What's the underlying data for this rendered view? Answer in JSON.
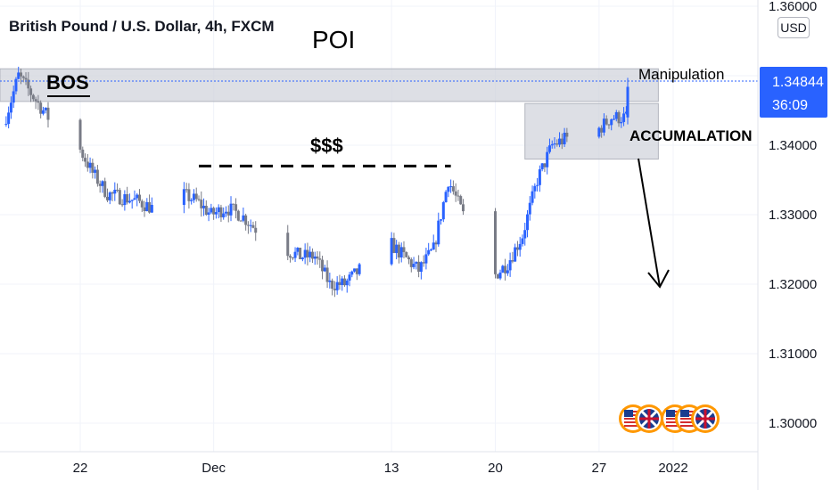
{
  "header": {
    "title": "British Pound / U.S. Dollar, 4h, FXCM",
    "currency": "USD"
  },
  "last_price": {
    "value": "1.34844",
    "countdown": "36:09"
  },
  "colors": {
    "up": "#2962ff",
    "down": "#787b86",
    "zone": "#d1d4dc",
    "price_label": "#2962ff"
  },
  "icons": [
    "us-flag-icon",
    "uk-flag-icon",
    "us-flag-icon",
    "us-flag-icon",
    "uk-flag-icon"
  ],
  "chart_data": {
    "type": "candlestick",
    "symbol": "GBPUSD",
    "timeframe": "4h",
    "ylim": [
      1.296,
      1.361
    ],
    "yticks": [
      "1.36000",
      "1.35000",
      "1.34000",
      "1.33000",
      "1.32000",
      "1.31000",
      "1.30000"
    ],
    "xticks": [
      {
        "label": "22",
        "date": "2021-11-22"
      },
      {
        "label": "Dec",
        "date": "2021-12-01"
      },
      {
        "label": "13",
        "date": "2021-12-13"
      },
      {
        "label": "20",
        "date": "2021-12-20"
      },
      {
        "label": "27",
        "date": "2021-12-27"
      },
      {
        "label": "2022",
        "date": "2022-01-01"
      }
    ],
    "path": [
      [
        "2021-11-17",
        1.343
      ],
      [
        "2021-11-18",
        1.35
      ],
      [
        "2021-11-19",
        1.347
      ],
      [
        "2021-11-20",
        1.344
      ],
      [
        "2021-11-21",
        1.342
      ],
      [
        "2021-11-22",
        1.34
      ],
      [
        "2021-11-23",
        1.336
      ],
      [
        "2021-11-24",
        1.333
      ],
      [
        "2021-11-25",
        1.3325
      ],
      [
        "2021-11-26",
        1.332
      ],
      [
        "2021-11-27",
        1.331
      ],
      [
        "2021-11-28",
        1.33
      ],
      [
        "2021-11-29",
        1.333
      ],
      [
        "2021-11-30",
        1.332
      ],
      [
        "2021-12-01",
        1.33
      ],
      [
        "2021-12-02",
        1.331
      ],
      [
        "2021-12-03",
        1.33
      ],
      [
        "2021-12-04",
        1.328
      ],
      [
        "2021-12-05",
        1.325
      ],
      [
        "2021-12-06",
        1.325
      ],
      [
        "2021-12-07",
        1.324
      ],
      [
        "2021-12-08",
        1.324
      ],
      [
        "2021-12-09",
        1.32
      ],
      [
        "2021-12-10",
        1.32
      ],
      [
        "2021-12-11",
        1.322
      ],
      [
        "2021-12-12",
        1.323
      ],
      [
        "2021-12-13",
        1.326
      ],
      [
        "2021-12-14",
        1.324
      ],
      [
        "2021-12-15",
        1.322
      ],
      [
        "2021-12-16",
        1.325
      ],
      [
        "2021-12-17",
        1.335
      ],
      [
        "2021-12-18",
        1.33
      ],
      [
        "2021-12-19",
        1.325
      ],
      [
        "2021-12-20",
        1.321
      ],
      [
        "2021-12-21",
        1.323
      ],
      [
        "2021-12-22",
        1.327
      ],
      [
        "2021-12-23",
        1.335
      ],
      [
        "2021-12-24",
        1.34
      ],
      [
        "2021-12-25",
        1.341
      ],
      [
        "2021-12-26",
        1.34
      ],
      [
        "2021-12-27",
        1.342
      ],
      [
        "2021-12-28",
        1.344
      ],
      [
        "2021-12-29",
        1.344
      ],
      [
        "2021-12-30",
        1.347
      ]
    ],
    "zones": [
      {
        "from": "2021-11-15",
        "to": "2021-12-31",
        "low": 1.3463,
        "high": 1.351
      },
      {
        "from": "2021-12-22",
        "to": "2021-12-31",
        "low": 1.338,
        "high": 1.346
      }
    ],
    "levels": [
      {
        "from": "2021-11-30",
        "to": "2021-12-17",
        "value": 1.337,
        "style": "dashed"
      }
    ],
    "annotations": [
      "POI",
      "BOS",
      "$$$",
      "Manipulation",
      "ACCUMALATION"
    ]
  }
}
